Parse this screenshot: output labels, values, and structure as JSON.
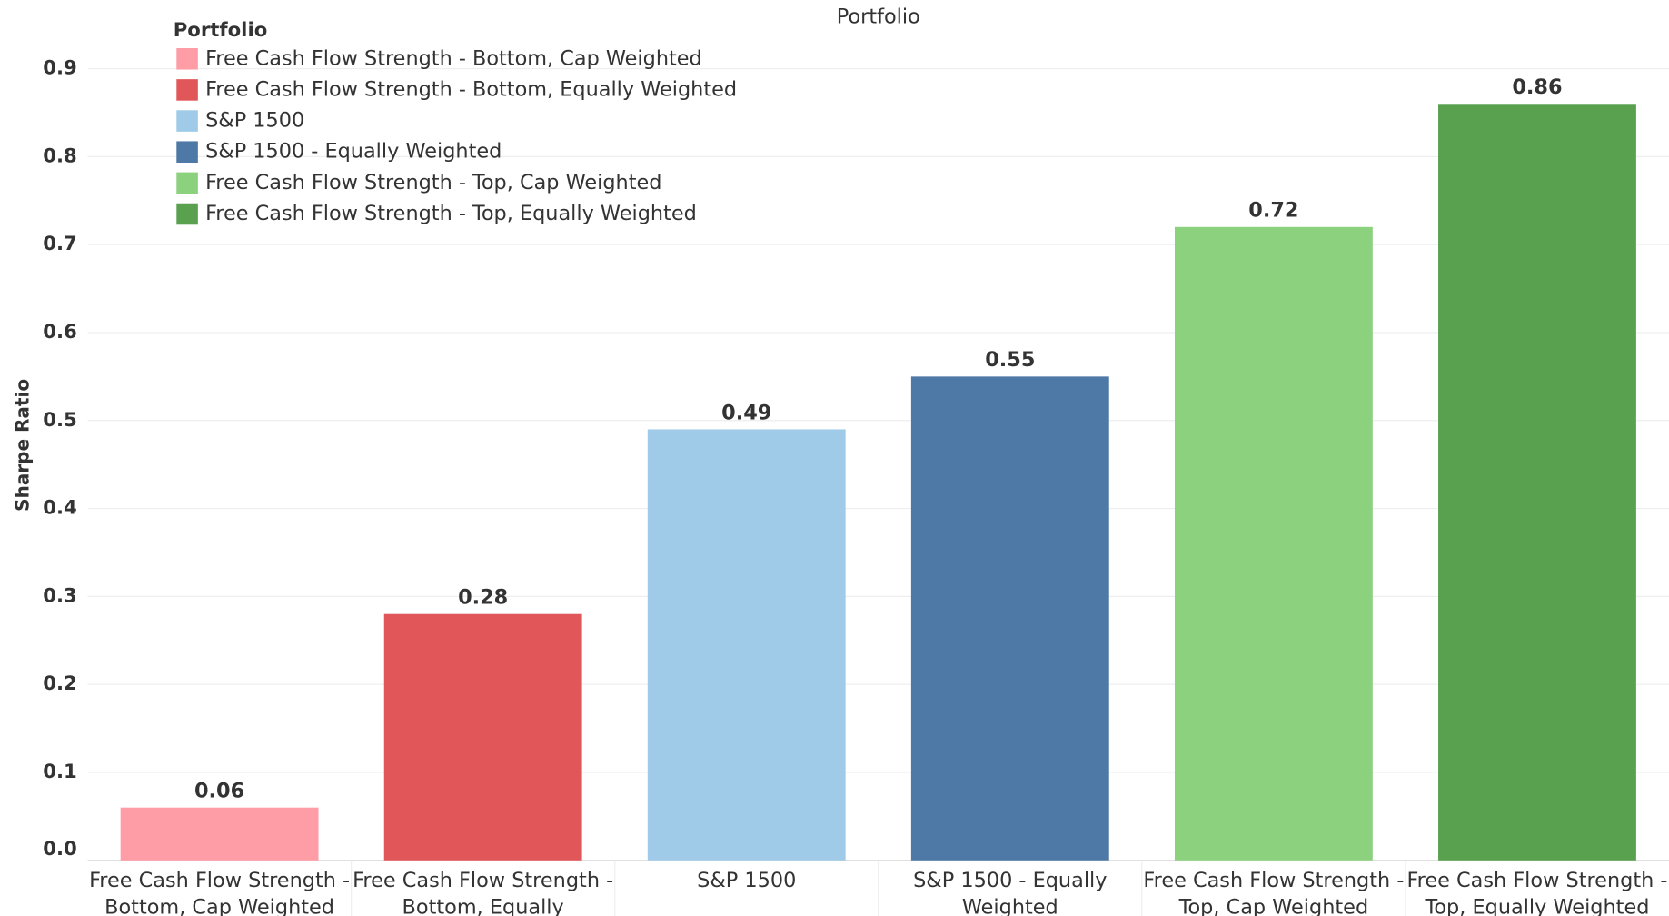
{
  "chart_data": {
    "type": "bar",
    "title": "Portfolio",
    "legend_title": "Portfolio",
    "y_label": "Sharpe Ratio",
    "categories": [
      "Free Cash Flow Strength - Bottom, Cap Weighted",
      "Free Cash Flow Strength - Bottom, Equally Weighted",
      "S&P 1500",
      "S&P 1500 - Equally Weighted",
      "Free Cash Flow Strength - Top, Cap Weighted",
      "Free Cash Flow Strength - Top, Equally Weighted"
    ],
    "values": [
      0.06,
      0.28,
      0.49,
      0.55,
      0.72,
      0.86
    ],
    "colors": [
      "#ff9da7",
      "#e15759",
      "#a0cbe8",
      "#4e79a7",
      "#8cd17d",
      "#59a14f"
    ],
    "ylim": [
      0,
      0.93
    ],
    "yticks": [
      {
        "value": 0,
        "label": "0.0"
      },
      0.1,
      0.2,
      0.3,
      0.4,
      0.5,
      0.6,
      0.7,
      0.8,
      0.9
    ],
    "grid": true,
    "legend_position": "upper-left"
  }
}
